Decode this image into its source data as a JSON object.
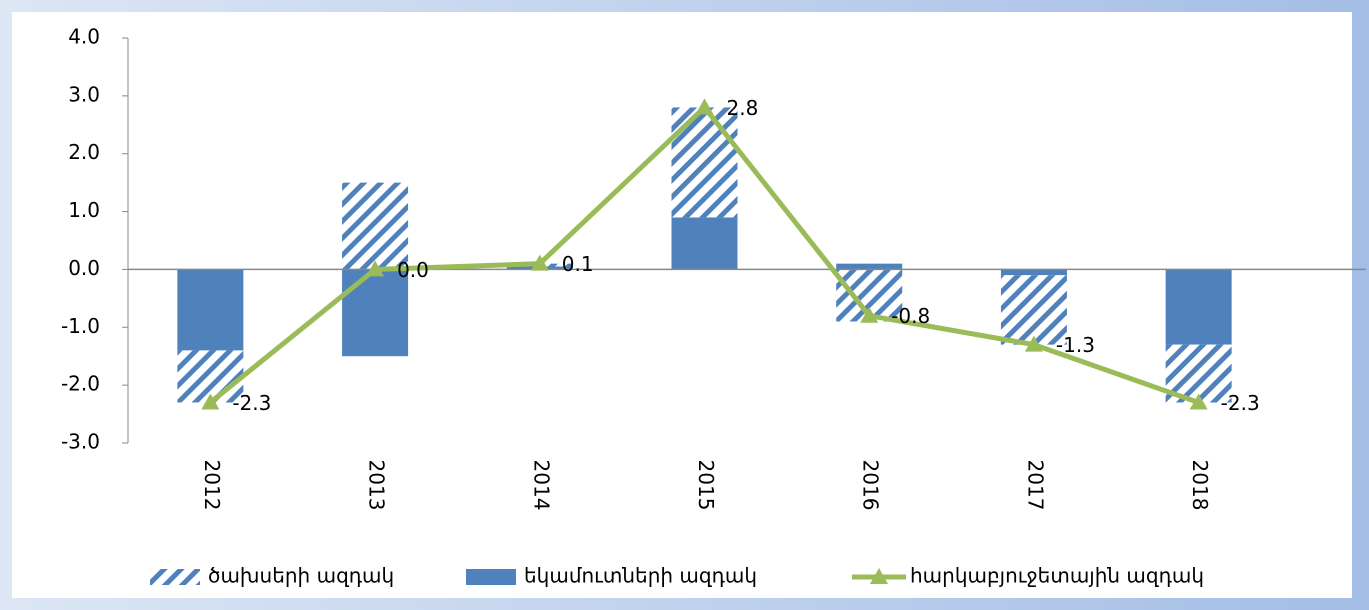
{
  "chart_data": {
    "type": "bar",
    "categories": [
      "2012",
      "2013",
      "2014",
      "2015",
      "2016",
      "2017",
      "2018"
    ],
    "series": [
      {
        "name": "ծախսերի ազդակ",
        "color": "#4f81bd",
        "pattern": "hatch",
        "values": [
          -0.9,
          1.5,
          0.05,
          1.9,
          -0.9,
          -1.2,
          -1.0
        ]
      },
      {
        "name": "եկամուտների ազդակ",
        "color": "#4f81bd",
        "values": [
          -1.4,
          -1.5,
          0.05,
          0.9,
          0.1,
          -0.1,
          -1.3
        ]
      },
      {
        "name": "հարկաբյուջետային ազդակ",
        "type": "line",
        "color": "#9bbb59",
        "values": [
          -2.3,
          0.0,
          0.1,
          2.8,
          -0.8,
          -1.3,
          -2.3
        ],
        "value_labels": [
          "-2.3",
          "0.0",
          "0.1",
          "2.8",
          "-0.8",
          "-1.3",
          "-2.3"
        ]
      }
    ],
    "ylim": [
      -3,
      4
    ],
    "yticks": [
      {
        "value": -3,
        "label": "-3.0"
      },
      {
        "value": -2,
        "label": "-2.0"
      },
      {
        "value": -1,
        "label": "-1.0"
      },
      {
        "value": 0,
        "label": "0.0"
      },
      {
        "value": 1,
        "label": "1.0"
      },
      {
        "value": 2,
        "label": "2.0"
      },
      {
        "value": 3,
        "label": "3.0"
      },
      {
        "value": 4,
        "label": "4.0"
      }
    ],
    "grid": false,
    "legend": "bottom"
  }
}
